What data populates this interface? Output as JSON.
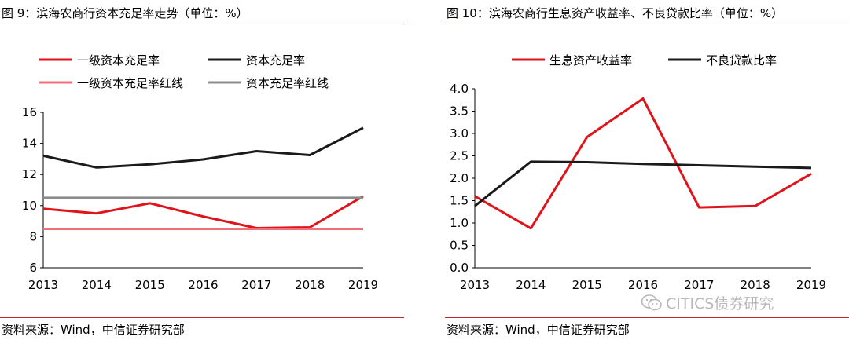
{
  "panels": [
    {
      "title": "图 9：滨海农商行资本充足率走势（单位：%）",
      "source": "资料来源：Wind，中信证券研究部"
    },
    {
      "title": "图 10：滨海农商行生息资产收益率、不良贷款比率（单位：%）",
      "source": "资料来源：Wind，中信证券研究部"
    }
  ],
  "watermark": {
    "text": "CITICS债券研究",
    "icon": "wechat-icon"
  },
  "chart_data": [
    {
      "type": "line",
      "title": "图 9：滨海农商行资本充足率走势（单位：%）",
      "x": [
        "2013",
        "2014",
        "2015",
        "2016",
        "2017",
        "2018",
        "2019"
      ],
      "ylim": [
        6,
        16
      ],
      "yticks": [
        "6",
        "8",
        "10",
        "12",
        "14",
        "16"
      ],
      "grid": false,
      "legend_position": "top",
      "series": [
        {
          "name": "一级资本充足率",
          "color": "#e0131a",
          "values": [
            9.8,
            9.5,
            10.15,
            9.3,
            8.55,
            8.6,
            10.6
          ]
        },
        {
          "name": "资本充足率",
          "color": "#1a1a1a",
          "values": [
            13.2,
            12.45,
            12.65,
            12.97,
            13.5,
            13.25,
            15.0
          ]
        },
        {
          "name": "一级资本充足率红线",
          "color": "#f0707a",
          "values": [
            8.5,
            8.5,
            8.5,
            8.5,
            8.5,
            8.5,
            8.5
          ]
        },
        {
          "name": "资本充足率红线",
          "color": "#8c8c8c",
          "values": [
            10.5,
            10.5,
            10.5,
            10.5,
            10.5,
            10.5,
            10.5
          ]
        }
      ]
    },
    {
      "type": "line",
      "title": "图 10：滨海农商行生息资产收益率、不良贷款比率（单位：%）",
      "x": [
        "2013",
        "2014",
        "2015",
        "2016",
        "2017",
        "2018",
        "2019"
      ],
      "ylim": [
        0,
        4
      ],
      "yticks": [
        "0.0",
        "0.5",
        "1.0",
        "1.5",
        "2.0",
        "2.5",
        "3.0",
        "3.5",
        "4.0"
      ],
      "grid": false,
      "legend_position": "top",
      "series": [
        {
          "name": "生息资产收益率",
          "color": "#e0131a",
          "values": [
            1.6,
            0.88,
            2.92,
            3.78,
            1.35,
            1.38,
            2.1
          ]
        },
        {
          "name": "不良贷款比率",
          "color": "#1a1a1a",
          "values": [
            1.38,
            2.37,
            2.36,
            2.32,
            2.29,
            2.26,
            2.23
          ]
        }
      ]
    }
  ]
}
